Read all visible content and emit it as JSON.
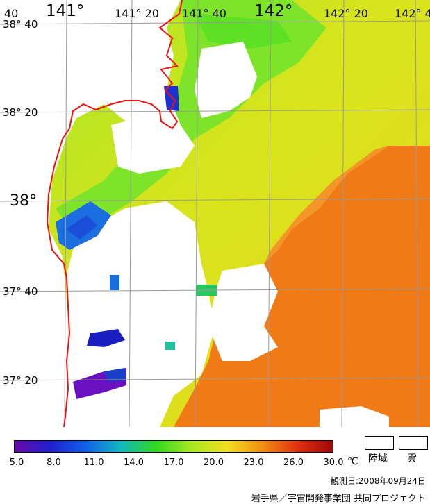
{
  "map": {
    "colors": {
      "orange": "#f07a16",
      "orange_light": "#f49528",
      "yellow_green": "#d6e41c",
      "lime": "#aeea24",
      "green": "#5ee025",
      "blue": "#1a5ee0",
      "navy": "#1a1ec0",
      "purple": "#6a10c0",
      "teal": "#20c0a0",
      "coast": "#ee1111",
      "grid": "#9a9a9a",
      "land": "#ffffff"
    }
  },
  "labels": {
    "lon_141": "141°",
    "lon_141_20": "141° 20",
    "lon_141_40": "141° 40",
    "lon_142": "142°",
    "lon_142_20": "142° 20",
    "lon_142_40": "142° 4",
    "lon_corner": "40",
    "lat_38_40": "38° 40",
    "lat_38_20": "38° 20",
    "lat_38": "38°",
    "lat_37_40": "37° 40",
    "lat_37_20": "37° 20"
  },
  "scale": {
    "ticks": [
      "5.0",
      "8.0",
      "11.0",
      "14.0",
      "17.0",
      "20.0",
      "23.0",
      "26.0",
      "30.0"
    ],
    "unit": "℃",
    "stops": [
      "#6a0aa8",
      "#2020d0",
      "#1060e8",
      "#10b8c0",
      "#30d820",
      "#a8e820",
      "#f0e020",
      "#f09010",
      "#e03010",
      "#a00808"
    ]
  },
  "legend": {
    "land_label": "陸域",
    "cloud_label": "雲"
  },
  "footer": {
    "date": "観測日:2008年09月24日",
    "credit": "岩手県／宇宙開発事業団 共同プロジェクト"
  }
}
